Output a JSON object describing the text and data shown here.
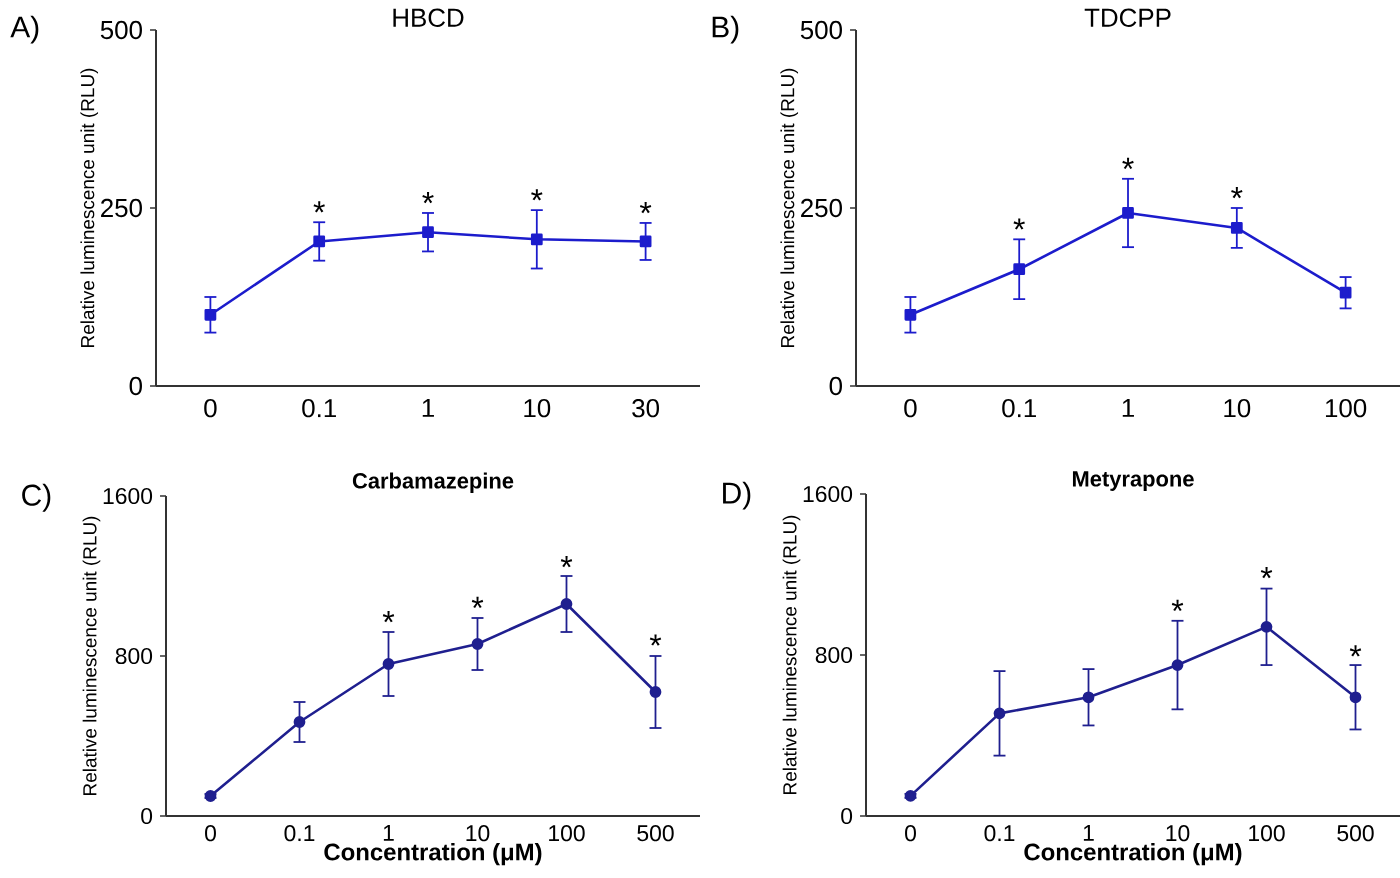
{
  "chart_data": [
    {
      "type": "line",
      "title": "HBCD",
      "ylabel": "Relative luminescence unit (RLU)",
      "categories": [
        "0",
        "0.1",
        "1",
        "10",
        "30"
      ],
      "values": [
        100,
        203,
        216,
        206,
        203
      ],
      "errors": [
        25,
        27,
        27,
        41,
        26
      ],
      "color": "#1c1ccc",
      "marker": "square",
      "ylim": [
        0,
        500
      ],
      "yticks": [
        0,
        250,
        500
      ],
      "annotations": [
        "A)",
        {
          "text": "*",
          "x": "0.1",
          "y": 230
        },
        {
          "text": "*",
          "x": "1",
          "y": 243
        },
        {
          "text": "*",
          "x": "10",
          "y": 247
        },
        {
          "text": "*",
          "x": "30",
          "y": 229
        }
      ]
    },
    {
      "type": "line",
      "title": "TDCPP",
      "ylabel": "Relative luminescence unit (RLU)",
      "categories": [
        "0",
        "0.1",
        "1",
        "10",
        "100"
      ],
      "values": [
        100,
        164,
        243,
        222,
        131
      ],
      "errors": [
        25,
        42,
        48,
        28,
        22
      ],
      "color": "#1c1ccc",
      "marker": "square",
      "ylim": [
        0,
        500
      ],
      "yticks": [
        0,
        250,
        500
      ],
      "annotations": [
        "B)",
        {
          "text": "*",
          "x": "0.1",
          "y": 206
        },
        {
          "text": "*",
          "x": "1",
          "y": 291
        },
        {
          "text": "*",
          "x": "10",
          "y": 250
        }
      ]
    },
    {
      "type": "line",
      "title": "Carbamazepine",
      "xlabel": "Concentration (μM)",
      "ylabel": "Relative luminescence unit (RLU)",
      "categories": [
        "0",
        "0.1",
        "1",
        "10",
        "100",
        "500"
      ],
      "values": [
        100,
        470,
        760,
        860,
        1060,
        620
      ],
      "errors": [
        10,
        100,
        160,
        130,
        140,
        180
      ],
      "color": "#1f1f8f",
      "marker": "circle",
      "ylim": [
        0,
        1600
      ],
      "yticks": [
        0,
        800,
        1600
      ],
      "annotations": [
        "C)",
        {
          "text": "*",
          "x": "1",
          "y": 920
        },
        {
          "text": "*",
          "x": "10",
          "y": 991
        },
        {
          "text": "*",
          "x": "100",
          "y": 1195
        },
        {
          "text": "*",
          "x": "500",
          "y": 803
        }
      ]
    },
    {
      "type": "line",
      "title": "Metyrapone",
      "xlabel": "Concentration (μM)",
      "ylabel": "Relative luminescence unit (RLU)",
      "categories": [
        "0",
        "0.1",
        "1",
        "10",
        "100",
        "500"
      ],
      "values": [
        100,
        510,
        590,
        750,
        940,
        590
      ],
      "errors": [
        10,
        210,
        140,
        220,
        190,
        160
      ],
      "color": "#1f1f8f",
      "marker": "circle",
      "ylim": [
        0,
        1600
      ],
      "yticks": [
        0,
        800,
        1600
      ],
      "annotations": [
        "D)",
        {
          "text": "*",
          "x": "10",
          "y": 970
        },
        {
          "text": "*",
          "x": "100",
          "y": 1133
        },
        {
          "text": "*",
          "x": "500",
          "y": 744
        }
      ]
    }
  ]
}
